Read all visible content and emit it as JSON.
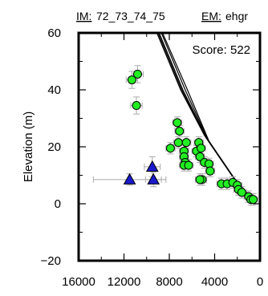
{
  "header": {
    "im_label": "IM:",
    "im_value": "72_73_74_75",
    "em_label": "EM:",
    "em_value": "ehgr"
  },
  "score_text": "Score: 522",
  "chart_data": {
    "type": "scatter",
    "title": "",
    "xlabel": "",
    "ylabel": "Elevation (m)",
    "xlim": [
      16000,
      0
    ],
    "ylim": [
      -20,
      60
    ],
    "x_reversed": true,
    "x_ticks": [
      16000,
      12000,
      8000,
      4000,
      0
    ],
    "x_tick_labels": [
      "16000",
      "12000",
      "8000",
      "4000",
      "0"
    ],
    "y_ticks": [
      -20,
      0,
      20,
      40,
      60
    ],
    "y_tick_labels": [
      "−20",
      "0",
      "20",
      "40",
      "60"
    ],
    "grid": false,
    "legend": "none",
    "colors": {
      "circles": "#22ee22",
      "triangles": "#1a1acc",
      "errorbars": "#aaaaaa",
      "lines": "#000000"
    },
    "series": [
      {
        "marker": "circle",
        "points": [
          {
            "x": 11300,
            "y": 43.5,
            "xerr": 500,
            "yerr": 3
          },
          {
            "x": 10800,
            "y": 45.5,
            "xerr": 500,
            "yerr": 3
          },
          {
            "x": 10900,
            "y": 34.5,
            "xerr": 500,
            "yerr": 3
          },
          {
            "x": 7300,
            "y": 28.5,
            "xerr": 400,
            "yerr": 2
          },
          {
            "x": 7100,
            "y": 25.5,
            "xerr": 400,
            "yerr": 2
          },
          {
            "x": 7200,
            "y": 21.5,
            "xerr": 400,
            "yerr": 2
          },
          {
            "x": 7900,
            "y": 19.5,
            "xerr": 400,
            "yerr": 2
          },
          {
            "x": 6500,
            "y": 21.5,
            "xerr": 400,
            "yerr": 2
          },
          {
            "x": 6700,
            "y": 18.5,
            "xerr": 400,
            "yerr": 2
          },
          {
            "x": 6700,
            "y": 16.5,
            "xerr": 400,
            "yerr": 2
          },
          {
            "x": 6600,
            "y": 14.5,
            "xerr": 400,
            "yerr": 2
          },
          {
            "x": 6700,
            "y": 13.5,
            "xerr": 400,
            "yerr": 2
          },
          {
            "x": 6300,
            "y": 13.5,
            "xerr": 400,
            "yerr": 2
          },
          {
            "x": 5600,
            "y": 18.5,
            "xerr": 400,
            "yerr": 2
          },
          {
            "x": 5400,
            "y": 21.5,
            "xerr": 400,
            "yerr": 2
          },
          {
            "x": 5200,
            "y": 19.5,
            "xerr": 400,
            "yerr": 2
          },
          {
            "x": 5300,
            "y": 16.5,
            "xerr": 400,
            "yerr": 2
          },
          {
            "x": 4900,
            "y": 14.5,
            "xerr": 400,
            "yerr": 2
          },
          {
            "x": 4500,
            "y": 14.0,
            "xerr": 400,
            "yerr": 2
          },
          {
            "x": 4400,
            "y": 11.5,
            "xerr": 400,
            "yerr": 2
          },
          {
            "x": 5100,
            "y": 8.5,
            "xerr": 400,
            "yerr": 2
          },
          {
            "x": 5300,
            "y": 8.5,
            "xerr": 400,
            "yerr": 2
          },
          {
            "x": 3400,
            "y": 7.0,
            "xerr": 400,
            "yerr": 2
          },
          {
            "x": 2900,
            "y": 7.0,
            "xerr": 400,
            "yerr": 2
          },
          {
            "x": 2400,
            "y": 7.5,
            "xerr": 400,
            "yerr": 2
          },
          {
            "x": 2000,
            "y": 6.5,
            "xerr": 400,
            "yerr": 2
          },
          {
            "x": 1900,
            "y": 5.0,
            "xerr": 400,
            "yerr": 2
          },
          {
            "x": 1600,
            "y": 4.0,
            "xerr": 400,
            "yerr": 2
          },
          {
            "x": 1000,
            "y": 2.5,
            "xerr": 400,
            "yerr": 2
          },
          {
            "x": 800,
            "y": 1.5,
            "xerr": 400,
            "yerr": 2
          },
          {
            "x": 600,
            "y": 1.5,
            "xerr": 400,
            "yerr": 2
          }
        ]
      },
      {
        "marker": "triangle",
        "points": [
          {
            "x": 11500,
            "y": 8.5,
            "xerr": 3200,
            "yerr": 2
          },
          {
            "x": 9500,
            "y": 13.0,
            "xerr": 700,
            "yerr": 3.5
          },
          {
            "x": 9400,
            "y": 8.5,
            "xerr": 700,
            "yerr": 2.5
          }
        ]
      },
      {
        "marker": "line",
        "lines": [
          [
            [
              9100,
              60
            ],
            [
              7000,
              40
            ],
            [
              4900,
              24
            ],
            [
              2500,
              10
            ],
            [
              800,
              2
            ]
          ],
          [
            [
              9000,
              60
            ],
            [
              6900,
              40
            ],
            [
              4800,
              23.5
            ],
            [
              2400,
              9.5
            ],
            [
              700,
              2
            ]
          ],
          [
            [
              8900,
              60
            ],
            [
              6800,
              40
            ],
            [
              4700,
              23
            ],
            [
              2300,
              9
            ],
            [
              650,
              1.5
            ]
          ],
          [
            [
              8700,
              60
            ],
            [
              6600,
              40
            ],
            [
              4600,
              22.5
            ],
            [
              2200,
              8.5
            ],
            [
              600,
              1.5
            ]
          ],
          [
            [
              8600,
              60
            ],
            [
              6400,
              40
            ],
            [
              4500,
              22
            ],
            [
              2100,
              8
            ],
            [
              500,
              1
            ]
          ]
        ]
      }
    ]
  }
}
